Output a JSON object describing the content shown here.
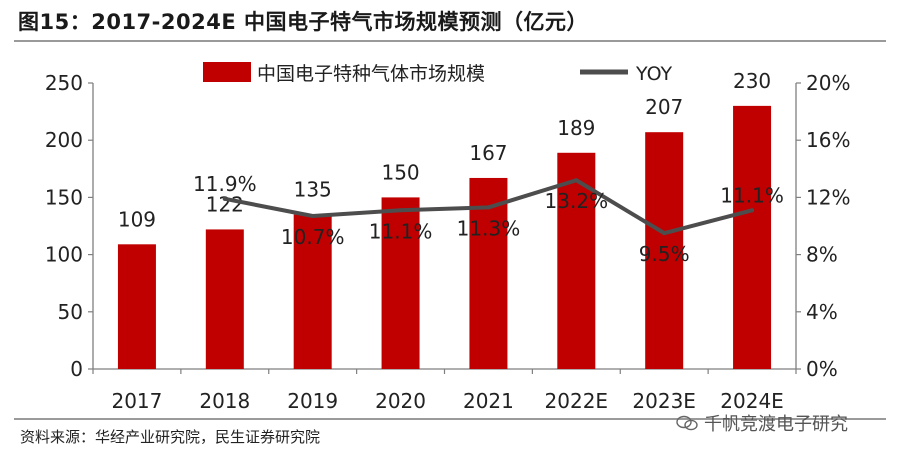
{
  "figure": {
    "title": "图15：2017-2024E 中国电子特气市场规模预测（亿元）",
    "source": "资料来源：华经产业研究院，民生证券研究院",
    "watermark": "千帆竞渡电子研究"
  },
  "chart_data": {
    "type": "bar",
    "categories": [
      "2017",
      "2018",
      "2019",
      "2020",
      "2021",
      "2022E",
      "2023E",
      "2024E"
    ],
    "series": [
      {
        "name": "中国电子特种气体市场规模",
        "kind": "bar",
        "axis": "left",
        "values": [
          109,
          122,
          135,
          150,
          167,
          189,
          207,
          230
        ],
        "labels": [
          "109",
          "122",
          "135",
          "150",
          "167",
          "189",
          "207",
          "230"
        ]
      },
      {
        "name": "YOY",
        "kind": "line",
        "axis": "right",
        "values": [
          null,
          11.9,
          10.7,
          11.1,
          11.3,
          13.2,
          9.5,
          11.1
        ],
        "labels": [
          "",
          "11.9%",
          "10.7%",
          "11.1%",
          "11.3%",
          "13.2%",
          "9.5%",
          "11.1%"
        ]
      }
    ],
    "y_left": {
      "min": 0,
      "max": 250,
      "step": 50,
      "ticks": [
        "0",
        "50",
        "100",
        "150",
        "200",
        "250"
      ]
    },
    "y_right": {
      "min": 0,
      "max": 20,
      "step": 4,
      "ticks": [
        "0%",
        "4%",
        "8%",
        "12%",
        "16%",
        "20%"
      ]
    },
    "legend": [
      "中国电子特种气体市场规模",
      "YOY"
    ],
    "legend_position": "top",
    "colors": {
      "bar": "#c00000",
      "line": "#4d4d4d",
      "axis": "#7f7f7f",
      "text": "#222222"
    }
  }
}
